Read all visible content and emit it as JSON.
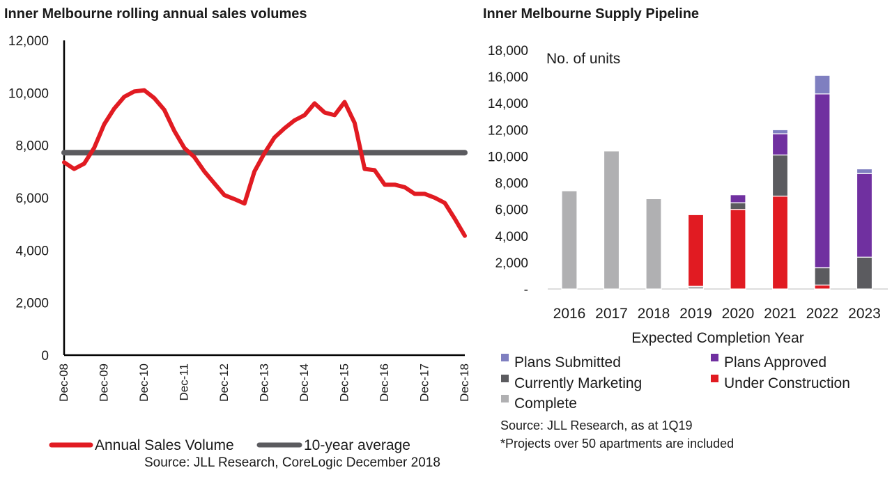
{
  "chart_data": [
    {
      "type": "line",
      "title": "Inner Melbourne  rolling annual sales volumes",
      "ylim": [
        0,
        12000
      ],
      "yticks": [
        "0",
        "2,000",
        "4,000",
        "6,000",
        "8,000",
        "10,000",
        "12,000"
      ],
      "x_labels": [
        "Dec-08",
        "Dec-09",
        "Dec-10",
        "Dec-11",
        "Dec-12",
        "Dec-13",
        "Dec-14",
        "Dec-15",
        "Dec-16",
        "Dec-17",
        "Dec-18"
      ],
      "x_count": 41,
      "series": [
        {
          "name": "Annual Sales Volume",
          "color": "#e11b22",
          "values": [
            7350,
            7100,
            7300,
            7900,
            8800,
            9400,
            9850,
            10050,
            10100,
            9800,
            9350,
            8550,
            7900,
            7550,
            7000,
            6550,
            6100,
            5950,
            5780,
            7000,
            7700,
            8300,
            8650,
            8950,
            9150,
            9600,
            9250,
            9150,
            9650,
            8850,
            7100,
            7050,
            6500,
            6500,
            6400,
            6150,
            6150,
            6000,
            5800,
            5200,
            4550
          ]
        },
        {
          "name": "10-year average",
          "color": "#5b5b5f",
          "values": [
            7720,
            7720
          ]
        }
      ],
      "source": "Source: JLL Research, CoreLogic December 2018"
    },
    {
      "type": "bar",
      "stacked": true,
      "title": "Inner Melbourne  Supply Pipeline",
      "annotation": "No. of units",
      "xlabel": "Expected Completion Year",
      "categories": [
        "2016",
        "2017",
        "2018",
        "2019",
        "2020",
        "2021",
        "2022",
        "2023"
      ],
      "ylim": [
        0,
        18000
      ],
      "yticks": [
        "-",
        "2,000",
        "4,000",
        "6,000",
        "8,000",
        "10,000",
        "12,000",
        "14,000",
        "16,000",
        "18,000"
      ],
      "series": [
        {
          "name": "Complete",
          "color": "#b0b0b2",
          "values": [
            7400,
            10400,
            6800,
            200,
            0,
            0,
            0,
            0
          ]
        },
        {
          "name": "Under Construction",
          "color": "#e11b22",
          "values": [
            0,
            0,
            0,
            5400,
            6000,
            7000,
            300,
            0
          ]
        },
        {
          "name": "Currently Marketing",
          "color": "#5b5b5f",
          "values": [
            0,
            0,
            0,
            0,
            500,
            3100,
            1300,
            2400
          ]
        },
        {
          "name": "Plans Approved",
          "color": "#7030a0",
          "values": [
            0,
            0,
            0,
            0,
            600,
            1600,
            13100,
            6300
          ]
        },
        {
          "name": "Plans Submitted",
          "color": "#7f7fc0",
          "values": [
            0,
            0,
            0,
            0,
            0,
            300,
            1400,
            350
          ]
        }
      ],
      "legend_order": [
        "Plans Submitted",
        "Plans Approved",
        "Currently Marketing",
        "Under Construction",
        "Complete"
      ],
      "source": "Source:  JLL Research, as at 1Q19",
      "note": "*Projects  over 50 apartments  are included"
    }
  ]
}
